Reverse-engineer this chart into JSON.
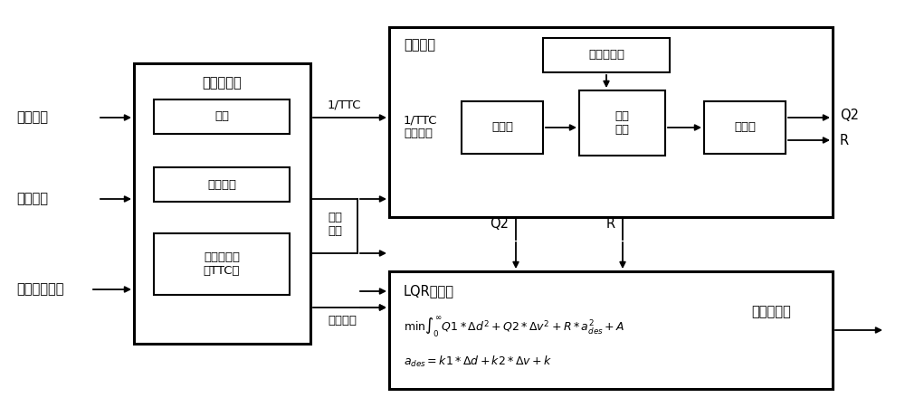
{
  "bg_color": "#ffffff",
  "text_color": "#000000",
  "inputs": [
    "前车距离",
    "前车车速",
    "被控车辆车速"
  ],
  "signal_box_label": "信号预处理",
  "sub_box1": "滤波",
  "sub_box2": "弯道距离",
  "sub_box3": "预碰撞时间\n（TTC）",
  "label_1ttc": "1/TTC",
  "label_rel_speed": "相对\n车速",
  "label_rel_dist": "相对距离",
  "fuzzy_region_label": "模糊控制",
  "fuzzy_input_label": "1/TTC\n相对车速",
  "fuzzy_rule_box": "模糊规则库",
  "fuzzy_box1": "模糊化",
  "fuzzy_box2": "模糊\n推理",
  "fuzzy_box3": "精确化",
  "lqr_box_label": "LQR控制器",
  "lqr_eq1_pre": "min",
  "lqr_eq1_math": "$\\int_0^{\\infty}Q1*\\Delta d^2+Q2*\\Delta v^2+R*a_{des}^2+A$",
  "lqr_eq2_math": "$a_{des}=k1*\\Delta d+k2*\\Delta v+k$",
  "out_q2": "Q2",
  "out_r": "R",
  "q2_down": "Q2",
  "r_down": "R",
  "output_final": "期望加速度"
}
